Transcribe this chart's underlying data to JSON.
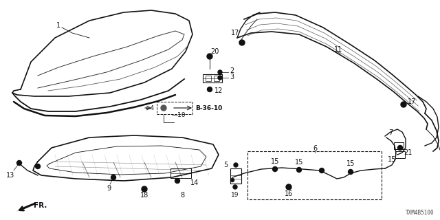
{
  "bg_color": "#ffffff",
  "fig_width": 6.4,
  "fig_height": 3.2,
  "dpi": 100,
  "part_number": "TXM4B5100",
  "line_color": "#111111",
  "label_fontsize": 7.0
}
